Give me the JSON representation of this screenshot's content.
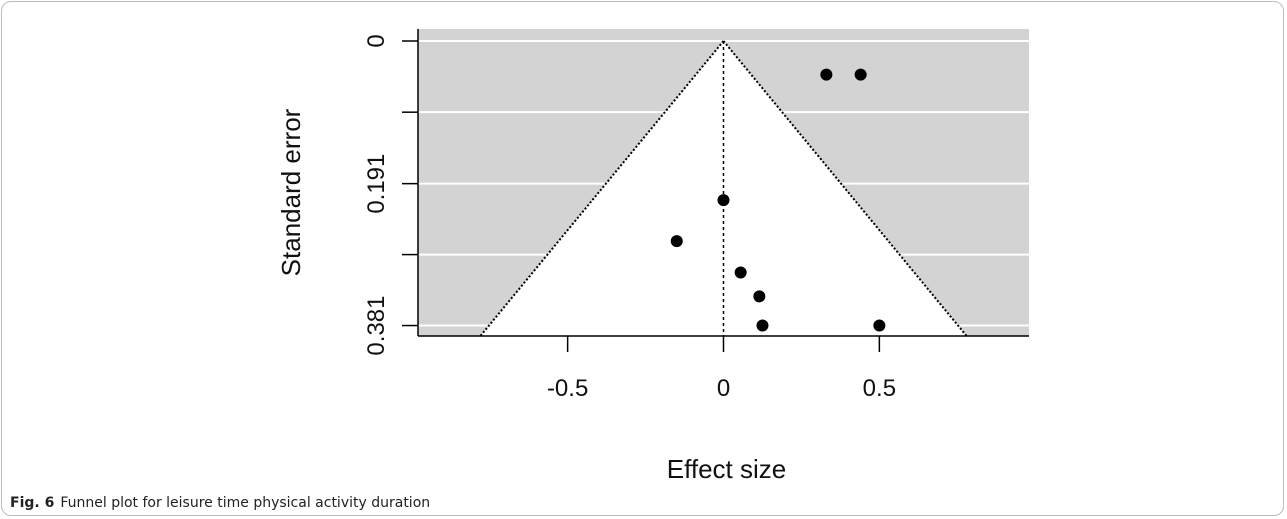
{
  "figure": {
    "label": "Fig. 6",
    "caption": "Funnel plot for leisure time physical activity duration"
  },
  "colors": {
    "shade": "#d3d3d3",
    "grid": "#ffffff",
    "funnel_fill": "#ffffff",
    "point": "#000000",
    "axis": "#000000"
  },
  "chart_data": {
    "type": "scatter",
    "subtype": "funnel",
    "xlabel": "Effect size",
    "ylabel": "Standard error",
    "x_ticks": [
      -0.5,
      0,
      0.5
    ],
    "x_tick_labels": [
      "-0.5",
      "0",
      "0.5"
    ],
    "y_ticks": [
      0,
      0.191,
      0.381
    ],
    "y_tick_labels": [
      "0",
      "0.191",
      "0.381"
    ],
    "y_grid": [
      0,
      0.0953,
      0.191,
      0.286,
      0.381
    ],
    "xlim": [
      -0.98,
      0.98
    ],
    "ylim": [
      0,
      0.395
    ],
    "y_reversed": true,
    "grid": true,
    "background": "shaded",
    "reference_line": {
      "x": 0,
      "style": "dotted"
    },
    "funnel": {
      "apex": [
        0,
        0
      ],
      "base_left": [
        -0.78,
        0.395
      ],
      "base_right": [
        0.78,
        0.395
      ],
      "style": "dotted"
    },
    "points": [
      {
        "x": 0.33,
        "y": 0.045
      },
      {
        "x": 0.44,
        "y": 0.045
      },
      {
        "x": 0.0,
        "y": 0.213
      },
      {
        "x": -0.15,
        "y": 0.268
      },
      {
        "x": 0.055,
        "y": 0.31
      },
      {
        "x": 0.115,
        "y": 0.342
      },
      {
        "x": 0.125,
        "y": 0.381
      },
      {
        "x": 0.5,
        "y": 0.381
      }
    ]
  }
}
